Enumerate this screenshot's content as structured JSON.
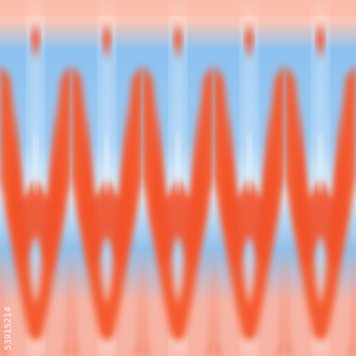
{
  "watermark": "53915214"
}
